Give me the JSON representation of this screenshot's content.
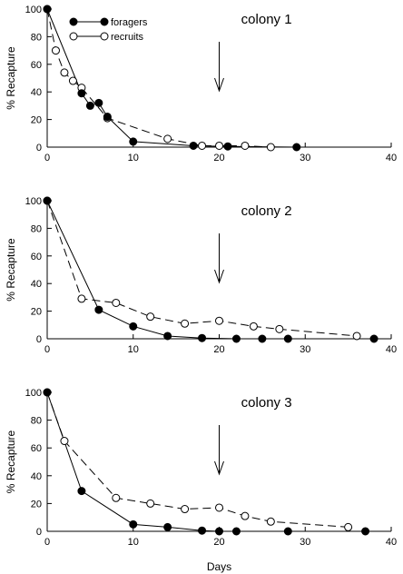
{
  "chart_data": [
    {
      "type": "line",
      "title": "colony 1",
      "xlabel": "",
      "ylabel": "% Recapture",
      "xlim": [
        0,
        40
      ],
      "ylim": [
        0,
        100
      ],
      "xticks": [
        0,
        10,
        20,
        30,
        40
      ],
      "yticks": [
        0,
        20,
        40,
        60,
        80,
        100
      ],
      "arrow_x": 20,
      "legend": {
        "placement": "top-left",
        "entries": [
          "foragers",
          "recruits"
        ]
      },
      "series": [
        {
          "name": "foragers",
          "marker": "filled",
          "line": "solid",
          "x": [
            0,
            4,
            5,
            6,
            7,
            10,
            17,
            21,
            29
          ],
          "y": [
            100,
            39,
            30,
            32,
            22,
            4,
            1,
            0.5,
            0
          ]
        },
        {
          "name": "recruits",
          "marker": "open",
          "line": "dashed",
          "x": [
            0,
            1,
            2,
            3,
            4,
            7,
            14,
            18,
            20,
            23,
            26
          ],
          "y": [
            100,
            70,
            54,
            48,
            43,
            21,
            6,
            1,
            1,
            1,
            0
          ]
        }
      ]
    },
    {
      "type": "line",
      "title": "colony 2",
      "xlabel": "",
      "ylabel": "% Recapture",
      "xlim": [
        0,
        40
      ],
      "ylim": [
        0,
        100
      ],
      "xticks": [
        0,
        10,
        20,
        30,
        40
      ],
      "yticks": [
        0,
        20,
        40,
        60,
        80,
        100
      ],
      "arrow_x": 20,
      "series": [
        {
          "name": "foragers",
          "marker": "filled",
          "line": "solid",
          "x": [
            0,
            6,
            10,
            14,
            18,
            22,
            25,
            28,
            38
          ],
          "y": [
            100,
            21,
            9,
            2,
            0.5,
            0,
            0,
            0,
            0
          ]
        },
        {
          "name": "recruits",
          "marker": "open",
          "line": "dashed",
          "x": [
            0,
            4,
            8,
            12,
            16,
            20,
            24,
            27,
            36
          ],
          "y": [
            100,
            29,
            26,
            16,
            11,
            13,
            9,
            7,
            2
          ]
        }
      ]
    },
    {
      "type": "line",
      "title": "colony 3",
      "xlabel": "Days",
      "ylabel": "% Recapture",
      "xlim": [
        0,
        40
      ],
      "ylim": [
        0,
        100
      ],
      "xticks": [
        0,
        10,
        20,
        30,
        40
      ],
      "yticks": [
        0,
        20,
        40,
        60,
        80,
        100
      ],
      "arrow_x": 20,
      "series": [
        {
          "name": "foragers",
          "marker": "filled",
          "line": "solid",
          "x": [
            0,
            4,
            10,
            14,
            18,
            20,
            22,
            28,
            37
          ],
          "y": [
            100,
            29,
            5,
            3,
            0.5,
            0,
            0,
            0,
            0
          ]
        },
        {
          "name": "recruits",
          "marker": "open",
          "line": "dashed",
          "x": [
            0,
            2,
            8,
            12,
            16,
            20,
            23,
            26,
            35
          ],
          "y": [
            100,
            65,
            24,
            20,
            16,
            17,
            11,
            7,
            3
          ]
        }
      ]
    }
  ]
}
